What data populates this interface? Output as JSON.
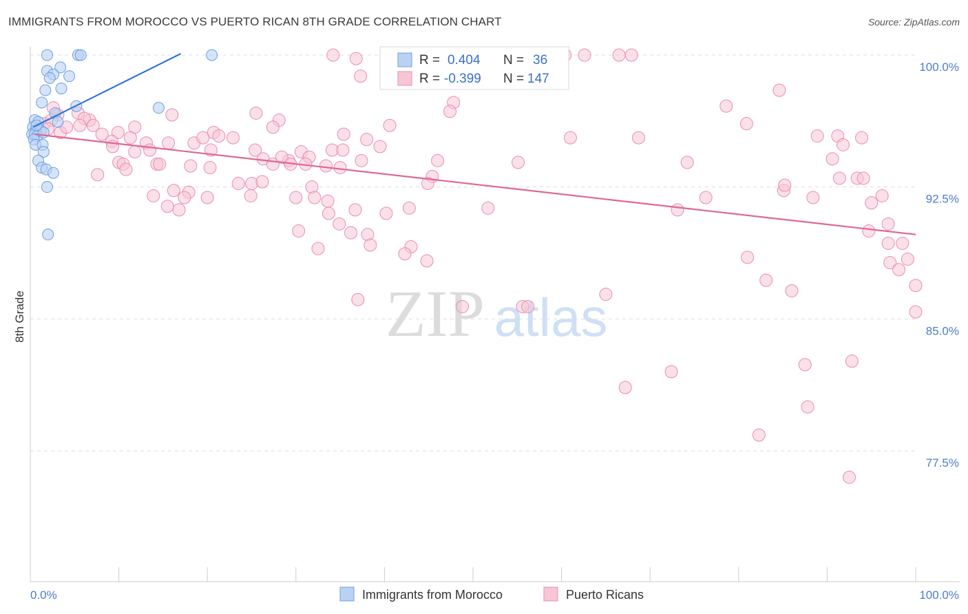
{
  "title": "IMMIGRANTS FROM MOROCCO VS PUERTO RICAN 8TH GRADE CORRELATION CHART",
  "source": "Source: ZipAtlas.com",
  "colors": {
    "blue_fill": "#b9d2f3",
    "blue_stroke": "#6f9ee0",
    "blue_line": "#3275d2",
    "pink_fill": "#f6c6d6",
    "pink_stroke": "#e98daf",
    "pink_line": "#e06595",
    "grid": "#dddddd",
    "tick_text": "#4a7bd0"
  },
  "watermark": {
    "zip": "ZIP",
    "atlas": "atlas"
  },
  "legend": {
    "r_label": "R =",
    "n_label": "N =",
    "rows": [
      {
        "r": "0.404",
        "n": "36"
      },
      {
        "r": "-0.399",
        "n": "147"
      }
    ]
  },
  "chart_data": {
    "type": "scatter",
    "title": "IMMIGRANTS FROM MOROCCO VS PUERTO RICAN 8TH GRADE CORRELATION CHART",
    "xlabel": "",
    "ylabel": "8th Grade",
    "xlim": [
      0,
      100
    ],
    "ylim": [
      70.0,
      100.7
    ],
    "x_tick_labels": [
      "0.0%",
      "100.0%"
    ],
    "y_ticks": [
      100.0,
      92.5,
      85.0,
      77.5
    ],
    "y_tick_labels": [
      "100.0%",
      "92.5%",
      "85.0%",
      "77.5%"
    ],
    "grid": true,
    "legend_position": "top-center",
    "series": [
      {
        "name": "Immigrants from Morocco",
        "r": 0.404,
        "n": 36,
        "trend": {
          "x": [
            0.3,
            17.0
          ],
          "y": [
            95.9,
            100.7
          ]
        },
        "points": [
          [
            1.9,
            100.0
          ],
          [
            5.4,
            100.0
          ],
          [
            5.7,
            100.0
          ],
          [
            20.5,
            100.0
          ],
          [
            3.4,
            99.3
          ],
          [
            1.9,
            99.1
          ],
          [
            2.6,
            98.9
          ],
          [
            2.2,
            98.7
          ],
          [
            4.4,
            98.8
          ],
          [
            1.7,
            98.0
          ],
          [
            3.5,
            98.1
          ],
          [
            1.3,
            97.3
          ],
          [
            5.2,
            97.1
          ],
          [
            14.5,
            97.0
          ],
          [
            2.8,
            96.7
          ],
          [
            0.5,
            96.3
          ],
          [
            3.1,
            96.2
          ],
          [
            0.9,
            96.2
          ],
          [
            0.3,
            95.9
          ],
          [
            0.6,
            95.7
          ],
          [
            1.2,
            95.7
          ],
          [
            0.2,
            95.5
          ],
          [
            0.5,
            95.5
          ],
          [
            0.8,
            95.4
          ],
          [
            1.5,
            95.6
          ],
          [
            0.4,
            95.2
          ],
          [
            0.6,
            94.9
          ],
          [
            1.4,
            94.9
          ],
          [
            1.5,
            94.5
          ],
          [
            0.9,
            94.0
          ],
          [
            1.3,
            93.6
          ],
          [
            1.8,
            93.5
          ],
          [
            2.6,
            93.3
          ],
          [
            1.9,
            92.5
          ],
          [
            2.0,
            89.8
          ],
          [
            0.7,
            96.0
          ]
        ]
      },
      {
        "name": "Puerto Ricans",
        "r": -0.399,
        "n": 147,
        "trend": {
          "x": [
            0.5,
            100.0
          ],
          "y": [
            95.5,
            89.8
          ]
        },
        "points": [
          [
            34.2,
            100.0
          ],
          [
            36.8,
            99.8
          ],
          [
            49.0,
            100.0
          ],
          [
            51.3,
            100.0
          ],
          [
            54.8,
            100.0
          ],
          [
            59.7,
            100.0
          ],
          [
            60.4,
            100.0
          ],
          [
            62.6,
            100.0
          ],
          [
            66.5,
            100.0
          ],
          [
            67.9,
            100.0
          ],
          [
            37.3,
            98.8
          ],
          [
            84.6,
            98.0
          ],
          [
            47.8,
            97.3
          ],
          [
            78.6,
            97.1
          ],
          [
            47.4,
            96.8
          ],
          [
            16.0,
            96.6
          ],
          [
            25.5,
            96.7
          ],
          [
            28.1,
            96.3
          ],
          [
            2.6,
            97.0
          ],
          [
            3.1,
            96.6
          ],
          [
            5.4,
            96.7
          ],
          [
            6.7,
            96.3
          ],
          [
            6.1,
            96.4
          ],
          [
            1.6,
            96.1
          ],
          [
            2.4,
            96.3
          ],
          [
            80.9,
            96.1
          ],
          [
            40.6,
            96.0
          ],
          [
            7.1,
            96.0
          ],
          [
            9.9,
            95.6
          ],
          [
            11.8,
            95.9
          ],
          [
            20.7,
            95.6
          ],
          [
            27.4,
            95.9
          ],
          [
            38.0,
            95.2
          ],
          [
            35.4,
            95.5
          ],
          [
            61.0,
            95.3
          ],
          [
            68.7,
            95.3
          ],
          [
            88.9,
            95.4
          ],
          [
            91.2,
            95.4
          ],
          [
            93.9,
            95.3
          ],
          [
            2.0,
            95.8
          ],
          [
            3.4,
            95.6
          ],
          [
            4.1,
            95.9
          ],
          [
            5.6,
            96.0
          ],
          [
            8.1,
            95.5
          ],
          [
            9.2,
            95.1
          ],
          [
            11.3,
            95.3
          ],
          [
            13.1,
            95.0
          ],
          [
            15.6,
            95.0
          ],
          [
            18.5,
            95.0
          ],
          [
            19.5,
            95.3
          ],
          [
            21.3,
            95.4
          ],
          [
            22.9,
            95.3
          ],
          [
            9.3,
            94.8
          ],
          [
            11.8,
            94.5
          ],
          [
            13.5,
            94.6
          ],
          [
            20.4,
            94.6
          ],
          [
            25.4,
            94.6
          ],
          [
            30.6,
            94.5
          ],
          [
            31.5,
            94.2
          ],
          [
            34.1,
            94.6
          ],
          [
            35.3,
            94.6
          ],
          [
            39.5,
            94.8
          ],
          [
            29.2,
            94.0
          ],
          [
            26.3,
            94.1
          ],
          [
            27.4,
            93.8
          ],
          [
            28.4,
            94.2
          ],
          [
            29.4,
            93.8
          ],
          [
            31.1,
            93.8
          ],
          [
            33.4,
            93.7
          ],
          [
            37.4,
            94.0
          ],
          [
            46.0,
            94.0
          ],
          [
            55.1,
            93.9
          ],
          [
            74.2,
            93.9
          ],
          [
            90.6,
            94.1
          ],
          [
            91.8,
            94.9
          ],
          [
            10.0,
            93.9
          ],
          [
            10.5,
            93.8
          ],
          [
            10.8,
            93.5
          ],
          [
            14.3,
            93.8
          ],
          [
            14.6,
            93.8
          ],
          [
            18.1,
            93.7
          ],
          [
            20.3,
            93.6
          ],
          [
            35.0,
            93.6
          ],
          [
            7.6,
            93.2
          ],
          [
            45.4,
            93.1
          ],
          [
            91.4,
            93.0
          ],
          [
            93.4,
            93.0
          ],
          [
            94.1,
            93.0
          ],
          [
            23.5,
            92.7
          ],
          [
            25.0,
            92.7
          ],
          [
            26.2,
            92.8
          ],
          [
            44.9,
            92.7
          ],
          [
            31.8,
            92.5
          ],
          [
            16.2,
            92.3
          ],
          [
            17.9,
            92.2
          ],
          [
            13.9,
            92.0
          ],
          [
            17.4,
            91.9
          ],
          [
            20.0,
            91.9
          ],
          [
            24.9,
            92.0
          ],
          [
            30.0,
            91.9
          ],
          [
            32.1,
            91.9
          ],
          [
            33.6,
            91.7
          ],
          [
            85.1,
            92.3
          ],
          [
            85.2,
            92.6
          ],
          [
            88.4,
            91.9
          ],
          [
            76.3,
            91.9
          ],
          [
            95.0,
            91.6
          ],
          [
            96.2,
            92.0
          ],
          [
            15.5,
            91.4
          ],
          [
            16.8,
            91.2
          ],
          [
            36.7,
            91.2
          ],
          [
            42.8,
            91.3
          ],
          [
            51.7,
            91.3
          ],
          [
            33.7,
            91.0
          ],
          [
            40.2,
            91.0
          ],
          [
            73.1,
            91.2
          ],
          [
            34.9,
            90.4
          ],
          [
            96.9,
            90.4
          ],
          [
            30.3,
            90.0
          ],
          [
            38.1,
            89.8
          ],
          [
            36.2,
            89.9
          ],
          [
            94.7,
            90.0
          ],
          [
            98.5,
            89.3
          ],
          [
            96.9,
            89.3
          ],
          [
            38.4,
            89.2
          ],
          [
            32.5,
            89.0
          ],
          [
            43.0,
            89.1
          ],
          [
            42.3,
            88.7
          ],
          [
            44.8,
            88.3
          ],
          [
            81.0,
            88.5
          ],
          [
            97.1,
            88.2
          ],
          [
            99.1,
            88.4
          ],
          [
            98.1,
            87.8
          ],
          [
            83.1,
            87.2
          ],
          [
            100.0,
            86.9
          ],
          [
            86.0,
            86.6
          ],
          [
            65.0,
            86.4
          ],
          [
            37.0,
            86.1
          ],
          [
            48.8,
            85.7
          ],
          [
            55.6,
            85.7
          ],
          [
            56.2,
            85.7
          ],
          [
            100.0,
            85.4
          ],
          [
            92.8,
            82.6
          ],
          [
            87.5,
            82.4
          ],
          [
            72.4,
            82.0
          ],
          [
            67.2,
            81.1
          ],
          [
            87.8,
            80.0
          ],
          [
            82.3,
            78.4
          ],
          [
            92.5,
            76.0
          ]
        ]
      }
    ]
  },
  "axis": {
    "ylabel": "8th Grade"
  },
  "bottom_legend": [
    {
      "label": "Immigrants from Morocco"
    },
    {
      "label": "Puerto Ricans"
    }
  ]
}
